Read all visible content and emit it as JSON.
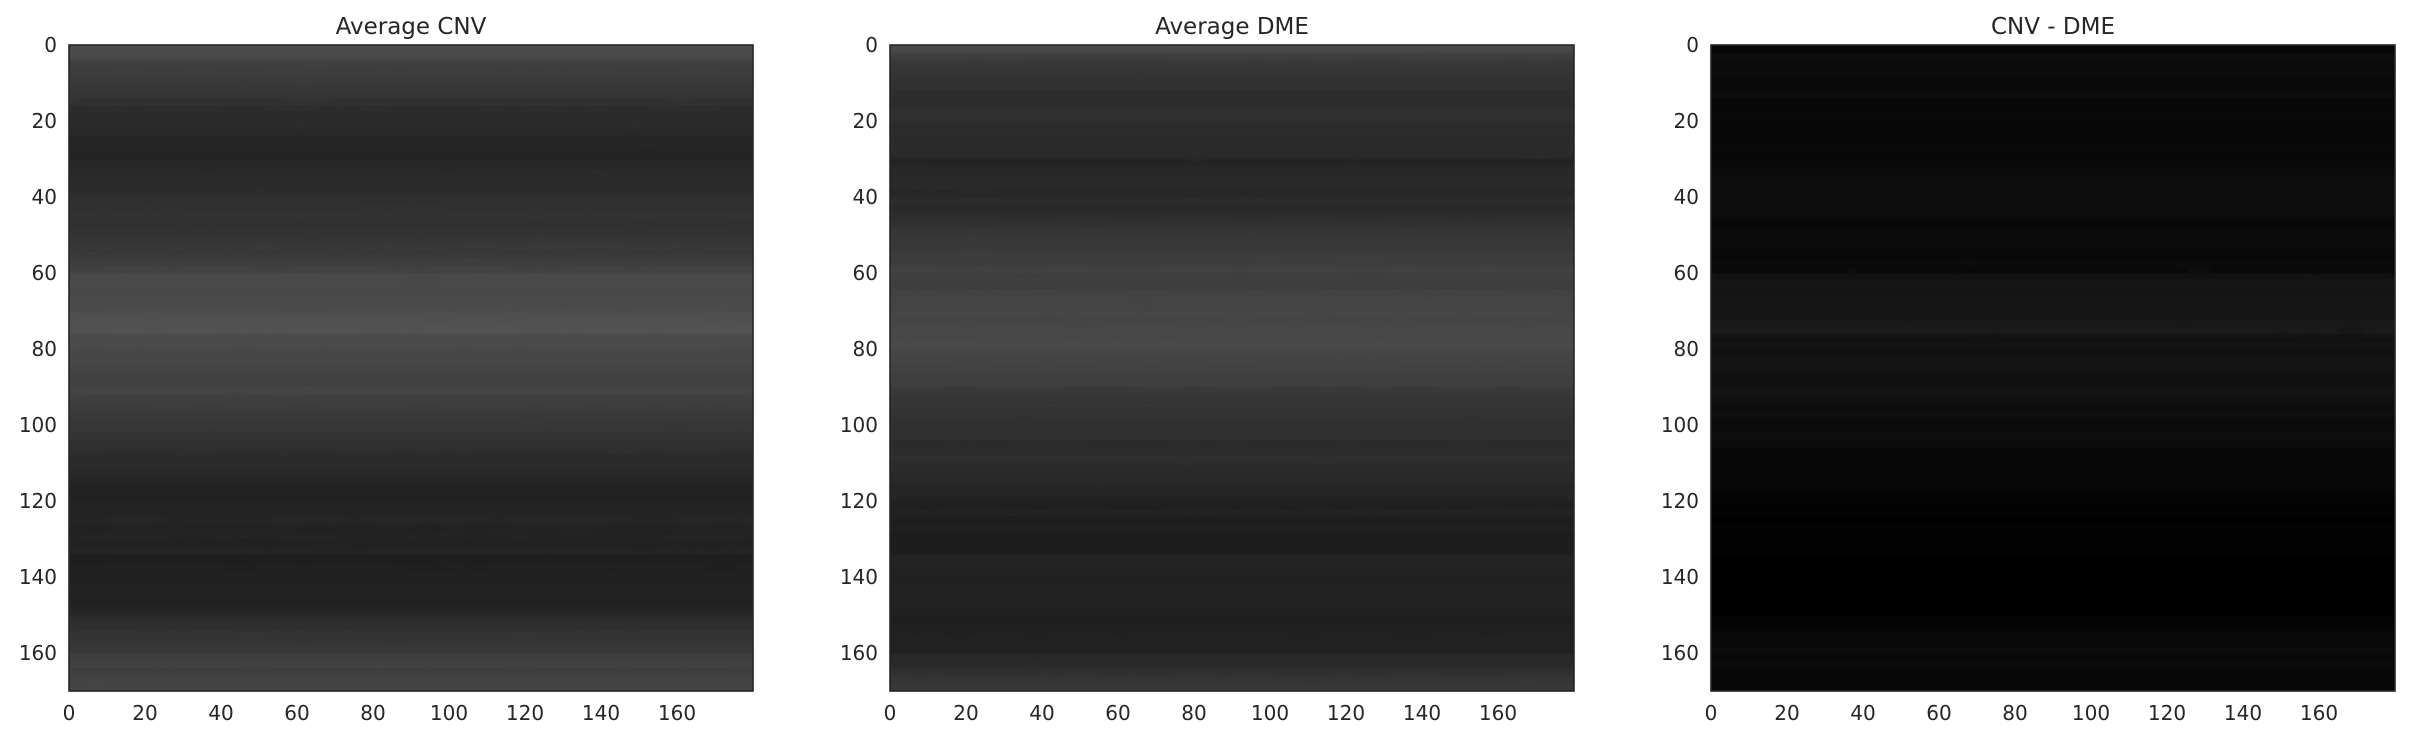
{
  "chart_data": [
    {
      "type": "heatmap",
      "title": "Average CNV",
      "xlabel": "",
      "ylabel": "",
      "xlim": [
        0,
        180
      ],
      "ylim": [
        170,
        0
      ],
      "xticks": [
        "0",
        "20",
        "40",
        "60",
        "80",
        "100",
        "120",
        "140",
        "160"
      ],
      "yticks": [
        "0",
        "20",
        "40",
        "60",
        "80",
        "100",
        "120",
        "140",
        "160"
      ],
      "colormap": "gray",
      "grid": false,
      "description_profile_rows": [
        0,
        5,
        15,
        30,
        45,
        60,
        75,
        90,
        105,
        120,
        135,
        150,
        160,
        170
      ],
      "description_profile_values": [
        0.32,
        0.26,
        0.2,
        0.15,
        0.2,
        0.28,
        0.32,
        0.27,
        0.2,
        0.15,
        0.14,
        0.17,
        0.24,
        0.3
      ]
    },
    {
      "type": "heatmap",
      "title": "Average DME",
      "xlabel": "",
      "ylabel": "",
      "xlim": [
        0,
        180
      ],
      "ylim": [
        170,
        0
      ],
      "xticks": [
        "0",
        "20",
        "40",
        "60",
        "80",
        "100",
        "120",
        "140",
        "160"
      ],
      "yticks": [
        "0",
        "20",
        "40",
        "60",
        "80",
        "100",
        "120",
        "140",
        "160"
      ],
      "colormap": "gray",
      "grid": false,
      "description_profile_rows": [
        0,
        5,
        15,
        30,
        45,
        60,
        75,
        90,
        105,
        120,
        135,
        150,
        160,
        170
      ],
      "description_profile_values": [
        0.3,
        0.24,
        0.19,
        0.16,
        0.19,
        0.26,
        0.3,
        0.25,
        0.19,
        0.15,
        0.13,
        0.13,
        0.16,
        0.22
      ]
    },
    {
      "type": "heatmap",
      "title": "CNV - DME",
      "xlabel": "",
      "ylabel": "",
      "xlim": [
        0,
        180
      ],
      "ylim": [
        170,
        0
      ],
      "xticks": [
        "0",
        "20",
        "40",
        "60",
        "80",
        "100",
        "120",
        "140",
        "160"
      ],
      "yticks": [
        "0",
        "20",
        "40",
        "60",
        "80",
        "100",
        "120",
        "140",
        "160"
      ],
      "colormap": "gray",
      "grid": false,
      "description_profile_rows": [
        0,
        20,
        40,
        60,
        75,
        90,
        110,
        140,
        160,
        170
      ],
      "description_profile_values": [
        0.04,
        0.03,
        0.05,
        0.07,
        0.1,
        0.08,
        0.03,
        0.01,
        0.03,
        0.06
      ]
    }
  ],
  "colors": {
    "figure_background": "#ffffff",
    "frame": "#262626",
    "text": "#262626"
  }
}
